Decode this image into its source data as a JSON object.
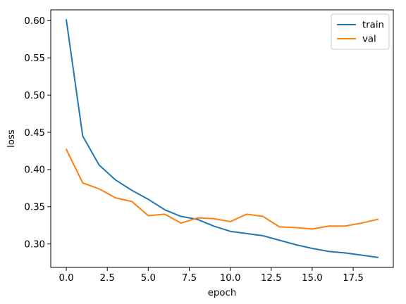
{
  "chart_data": {
    "type": "line",
    "title": "",
    "xlabel": "epoch",
    "ylabel": "loss",
    "xlim": [
      -0.95,
      19.95
    ],
    "ylim": [
      0.2685,
      0.6145
    ],
    "xticks": [
      0.0,
      2.5,
      5.0,
      7.5,
      10.0,
      12.5,
      15.0,
      17.5
    ],
    "xtick_labels": [
      "0.0",
      "2.5",
      "5.0",
      "7.5",
      "10.0",
      "12.5",
      "15.0",
      "17.5"
    ],
    "yticks": [
      0.3,
      0.35,
      0.4,
      0.45,
      0.5,
      0.55,
      0.6
    ],
    "ytick_labels": [
      "0.30",
      "0.35",
      "0.40",
      "0.45",
      "0.50",
      "0.55",
      "0.60"
    ],
    "grid": false,
    "legend_position": "top-right",
    "x": [
      0,
      1,
      2,
      3,
      4,
      5,
      6,
      7,
      8,
      9,
      10,
      11,
      12,
      13,
      14,
      15,
      16,
      17,
      18,
      19
    ],
    "series": [
      {
        "name": "train",
        "color": "#1f77b4",
        "values": [
          0.601,
          0.445,
          0.406,
          0.386,
          0.372,
          0.36,
          0.346,
          0.337,
          0.333,
          0.324,
          0.317,
          0.314,
          0.311,
          0.305,
          0.299,
          0.294,
          0.29,
          0.288,
          0.285,
          0.282
        ]
      },
      {
        "name": "val",
        "color": "#ff7f0e",
        "values": [
          0.427,
          0.382,
          0.374,
          0.362,
          0.357,
          0.338,
          0.34,
          0.328,
          0.335,
          0.334,
          0.33,
          0.34,
          0.337,
          0.323,
          0.322,
          0.32,
          0.324,
          0.324,
          0.328,
          0.333
        ]
      }
    ]
  }
}
